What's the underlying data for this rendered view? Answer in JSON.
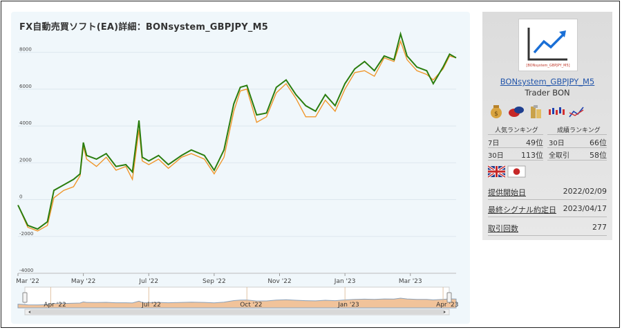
{
  "chart_panel": {
    "title": "FX自動売買ソフト(EA)詳細：BONsystem_GBPJPY_M5"
  },
  "chart_data": {
    "type": "line",
    "ylim": [
      -4000,
      9000
    ],
    "y_ticks": [
      "8000",
      "6000",
      "4000",
      "2000",
      "0",
      "-2000",
      "-4000"
    ],
    "y_tick_values": [
      8000,
      6000,
      4000,
      2000,
      0,
      -2000,
      -4000
    ],
    "x_ticks": [
      "Mar '22",
      "May '22",
      "Jul '22",
      "Sep '22",
      "Nov '22",
      "Jan '23",
      "Mar '23"
    ],
    "x_tick_index": [
      0,
      2,
      4,
      6,
      8,
      10,
      12
    ],
    "navigator_ticks": [
      "Apr '22",
      "Jul '22",
      "Oct '22",
      "Jan '23",
      "Apr '23"
    ],
    "navigator_tick_index": [
      1,
      4,
      7,
      10,
      13
    ],
    "x_range_months": [
      0,
      13.4
    ],
    "grid": true,
    "series": [
      {
        "color": "#2a7d0e",
        "points": [
          [
            0,
            -300
          ],
          [
            0.3,
            -1400
          ],
          [
            0.6,
            -1600
          ],
          [
            0.9,
            -1200
          ],
          [
            1.1,
            500
          ],
          [
            1.4,
            800
          ],
          [
            1.7,
            1100
          ],
          [
            1.9,
            1400
          ],
          [
            2.0,
            3100
          ],
          [
            2.1,
            2400
          ],
          [
            2.4,
            2200
          ],
          [
            2.7,
            2500
          ],
          [
            3.0,
            1800
          ],
          [
            3.3,
            1900
          ],
          [
            3.5,
            1500
          ],
          [
            3.7,
            4300
          ],
          [
            3.8,
            2300
          ],
          [
            4.0,
            2100
          ],
          [
            4.3,
            2400
          ],
          [
            4.6,
            1900
          ],
          [
            5.0,
            2400
          ],
          [
            5.3,
            2700
          ],
          [
            5.7,
            2400
          ],
          [
            6.0,
            1600
          ],
          [
            6.3,
            2700
          ],
          [
            6.6,
            5200
          ],
          [
            6.8,
            6100
          ],
          [
            7.0,
            6200
          ],
          [
            7.3,
            4600
          ],
          [
            7.6,
            4700
          ],
          [
            7.9,
            6100
          ],
          [
            8.2,
            6500
          ],
          [
            8.5,
            5700
          ],
          [
            8.8,
            5100
          ],
          [
            9.1,
            4800
          ],
          [
            9.4,
            5700
          ],
          [
            9.7,
            5100
          ],
          [
            10.0,
            6300
          ],
          [
            10.3,
            7100
          ],
          [
            10.6,
            7500
          ],
          [
            10.9,
            7000
          ],
          [
            11.2,
            7800
          ],
          [
            11.5,
            7600
          ],
          [
            11.7,
            9000
          ],
          [
            11.9,
            7800
          ],
          [
            12.2,
            7200
          ],
          [
            12.5,
            7000
          ],
          [
            12.7,
            6300
          ],
          [
            13.0,
            7200
          ],
          [
            13.2,
            7900
          ],
          [
            13.4,
            7700
          ]
        ]
      },
      {
        "color": "#f0962a",
        "points": [
          [
            0,
            -300
          ],
          [
            0.3,
            -1500
          ],
          [
            0.6,
            -1700
          ],
          [
            0.9,
            -1400
          ],
          [
            1.1,
            100
          ],
          [
            1.4,
            500
          ],
          [
            1.7,
            700
          ],
          [
            1.9,
            1300
          ],
          [
            2.0,
            2900
          ],
          [
            2.1,
            2200
          ],
          [
            2.4,
            1800
          ],
          [
            2.7,
            2300
          ],
          [
            3.0,
            1600
          ],
          [
            3.3,
            1800
          ],
          [
            3.5,
            1100
          ],
          [
            3.7,
            3800
          ],
          [
            3.8,
            2100
          ],
          [
            4.0,
            1900
          ],
          [
            4.3,
            2200
          ],
          [
            4.6,
            1700
          ],
          [
            5.0,
            2300
          ],
          [
            5.3,
            2500
          ],
          [
            5.7,
            2200
          ],
          [
            6.0,
            1400
          ],
          [
            6.3,
            2300
          ],
          [
            6.6,
            4800
          ],
          [
            6.8,
            5900
          ],
          [
            7.0,
            6000
          ],
          [
            7.3,
            4200
          ],
          [
            7.6,
            4500
          ],
          [
            7.9,
            5800
          ],
          [
            8.2,
            6300
          ],
          [
            8.5,
            5500
          ],
          [
            8.8,
            4500
          ],
          [
            9.1,
            4500
          ],
          [
            9.4,
            5400
          ],
          [
            9.7,
            4800
          ],
          [
            10.0,
            6000
          ],
          [
            10.3,
            6900
          ],
          [
            10.6,
            7000
          ],
          [
            10.9,
            6700
          ],
          [
            11.2,
            7700
          ],
          [
            11.5,
            7500
          ],
          [
            11.7,
            8600
          ],
          [
            11.9,
            7600
          ],
          [
            12.2,
            7000
          ],
          [
            12.5,
            6800
          ],
          [
            12.7,
            6500
          ],
          [
            13.0,
            7100
          ],
          [
            13.2,
            7800
          ],
          [
            13.4,
            7700
          ]
        ]
      }
    ]
  },
  "sidebar": {
    "logo_icon": "chart-up-arrow-icon",
    "logo_label": "[BONsystem_GBPJPY_M5]",
    "system_name": "BONsystem_GBPJPY_M5",
    "trader": "Trader BON",
    "feature_icons": [
      "money-bag-icon",
      "speech-bubble-icon",
      "coin-stack-icon",
      "candlestick-icon",
      "trend-line-icon"
    ],
    "popularity_heading": "人気ランキング",
    "performance_heading": "成績ランキング",
    "popularity": [
      {
        "label": "7日",
        "value": "49位"
      },
      {
        "label": "30日",
        "value": "113位"
      }
    ],
    "performance": [
      {
        "label": "30日",
        "value": "66位"
      },
      {
        "label": "全取引",
        "value": "58位"
      }
    ],
    "flags": [
      "uk-flag-icon",
      "japan-flag-icon"
    ],
    "info": [
      {
        "label": "提供開始日",
        "value": "2022/02/09"
      },
      {
        "label": "最終シグナル約定日",
        "value": "2023/04/17"
      },
      {
        "label": "取引回数",
        "value": "277"
      }
    ]
  }
}
